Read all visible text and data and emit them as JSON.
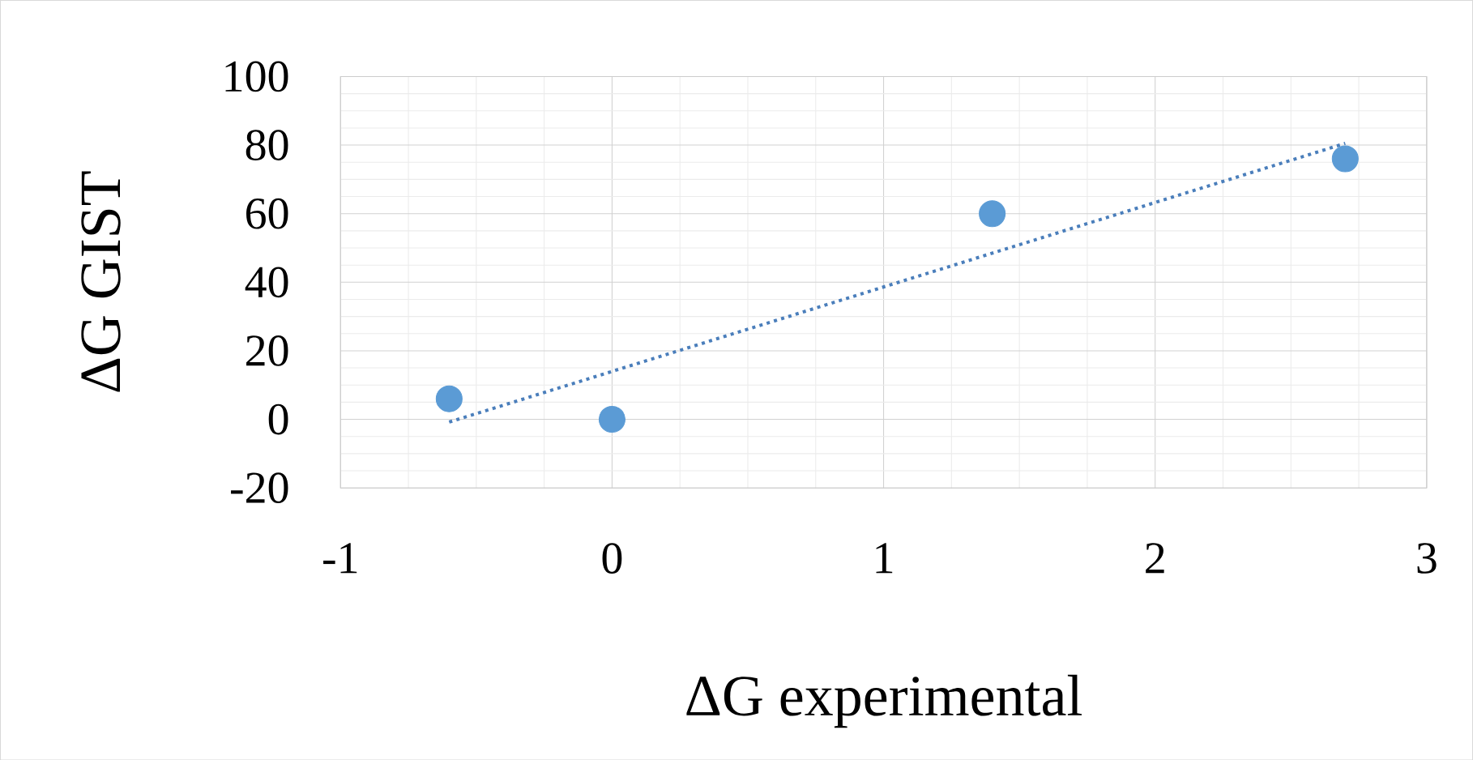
{
  "chart_data": {
    "type": "scatter",
    "xlabel": "ΔG experimental",
    "ylabel": "ΔG GIST",
    "xlim": [
      -1,
      3
    ],
    "xticks": [
      -1,
      0,
      1,
      2,
      3
    ],
    "ylim": [
      -20,
      100
    ],
    "yticks": [
      -20,
      0,
      20,
      40,
      60,
      80,
      100
    ],
    "grid": true,
    "series": [
      {
        "color": "#5b9bd5",
        "marker": "circle",
        "x": [
          -0.6,
          0,
          1.4,
          2.7
        ],
        "values": [
          6,
          0,
          60,
          76
        ]
      },
      {
        "type": "line",
        "color": "#4a7ebb",
        "marker": "none",
        "line_style": "dotted",
        "x": [
          -0.6,
          2.7
        ],
        "values": [
          -0.8,
          80.5
        ]
      }
    ]
  }
}
